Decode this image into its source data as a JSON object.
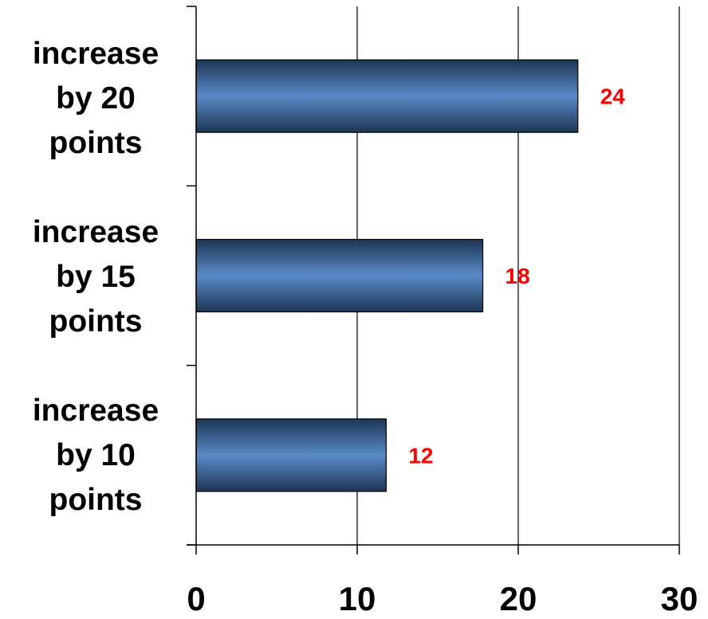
{
  "chart_data": {
    "type": "bar",
    "orientation": "horizontal",
    "categories": [
      "increase by 20 points",
      "increase by 15 points",
      "increase by 10 points"
    ],
    "category_lines": [
      [
        "increase",
        "by 20",
        "points"
      ],
      [
        "increase",
        "by 15",
        "points"
      ],
      [
        "increase",
        "by 10",
        "points"
      ]
    ],
    "values": [
      23.7,
      17.8,
      11.8
    ],
    "data_labels": [
      "24",
      "18",
      "12"
    ],
    "xlim": [
      0,
      30
    ],
    "x_ticks": [
      0,
      10,
      20,
      30
    ],
    "x_tick_labels": [
      "0",
      "10",
      "20",
      "30"
    ],
    "title": "",
    "xlabel": "",
    "ylabel": "",
    "grid": "vertical",
    "legend": "none",
    "colors": {
      "bar_center": "#5a8bc8",
      "bar_edge": "#1d3554",
      "data_label": "#ff0000",
      "axis": "#000000"
    }
  }
}
